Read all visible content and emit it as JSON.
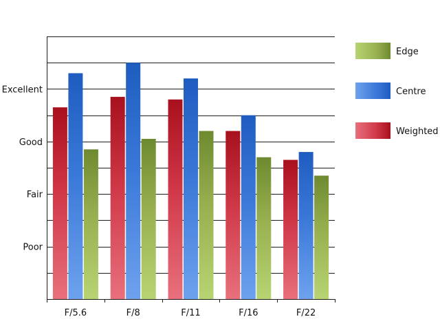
{
  "chart_data": {
    "type": "bar",
    "title": "",
    "xlabel": "",
    "ylabel": "",
    "categories": [
      "F/5.6",
      "F/8",
      "F/11",
      "F/16",
      "F/22"
    ],
    "y_tick_labels": [
      {
        "value": 1,
        "label": "Poor"
      },
      {
        "value": 2,
        "label": "Fair"
      },
      {
        "value": 3,
        "label": "Good"
      },
      {
        "value": 4,
        "label": "Excellent"
      }
    ],
    "ylim": [
      0,
      5
    ],
    "grid": true,
    "legend_position": "right",
    "series": [
      {
        "name": "Weighted",
        "values": [
          3.65,
          3.85,
          3.8,
          3.2,
          2.65
        ],
        "colors": {
          "light": "#e8707c",
          "mid": "#d03848",
          "dark": "#a8101e"
        }
      },
      {
        "name": "Centre",
        "values": [
          4.3,
          4.5,
          4.2,
          3.5,
          2.8
        ],
        "colors": {
          "light": "#6ea2ee",
          "mid": "#3a78d8",
          "dark": "#1e5cc0"
        }
      },
      {
        "name": "Edge",
        "values": [
          2.85,
          3.05,
          3.2,
          2.7,
          2.35
        ],
        "colors": {
          "light": "#b8d472",
          "mid": "#98b050",
          "dark": "#6e8a30"
        }
      }
    ],
    "legend_order": [
      "Edge",
      "Centre",
      "Weighted"
    ]
  }
}
